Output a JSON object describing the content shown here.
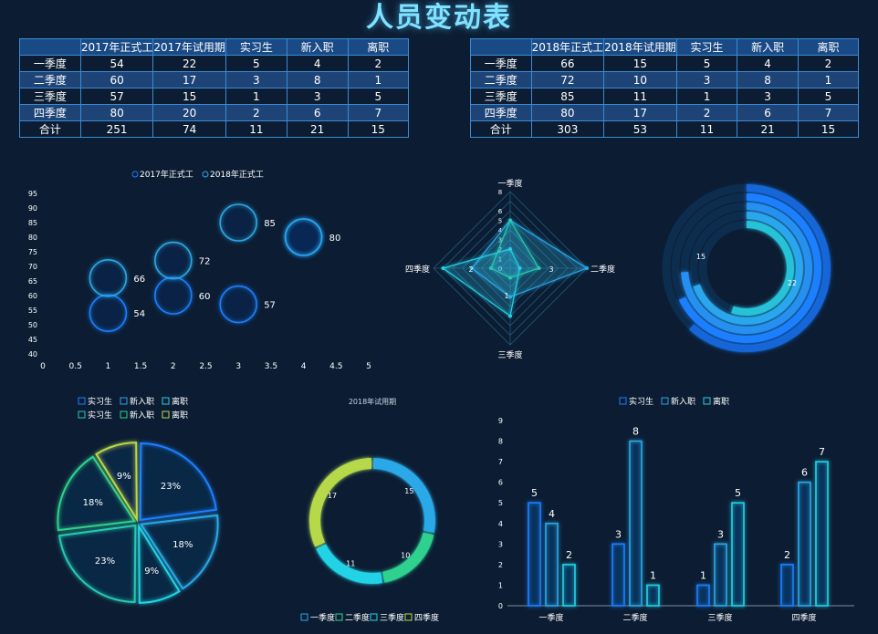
{
  "page_title": "人员变动表",
  "colors": {
    "accent": "#7fe3ff",
    "blue": "#1a7fff",
    "lightblue": "#2aa8e8",
    "cyan": "#22d3e6",
    "teal": "#26c9b3",
    "green": "#2fd18e",
    "lime": "#b7d94a",
    "table_border": "#3a8bd1",
    "table_header": "#1a4a86"
  },
  "table_2017": {
    "columns": [
      "",
      "2017年正式工",
      "2017年试用期",
      "实习生",
      "新入职",
      "离职"
    ],
    "rows": [
      [
        "一季度",
        "54",
        "22",
        "5",
        "4",
        "2"
      ],
      [
        "二季度",
        "60",
        "17",
        "3",
        "8",
        "1"
      ],
      [
        "三季度",
        "57",
        "15",
        "1",
        "3",
        "5"
      ],
      [
        "四季度",
        "80",
        "20",
        "2",
        "6",
        "7"
      ],
      [
        "合计",
        "251",
        "74",
        "11",
        "21",
        "15"
      ]
    ]
  },
  "table_2018": {
    "columns": [
      "",
      "2018年正式工",
      "2018年试用期",
      "实习生",
      "新入职",
      "离职"
    ],
    "rows": [
      [
        "一季度",
        "66",
        "15",
        "5",
        "4",
        "2"
      ],
      [
        "二季度",
        "72",
        "10",
        "3",
        "8",
        "1"
      ],
      [
        "三季度",
        "85",
        "11",
        "1",
        "3",
        "5"
      ],
      [
        "四季度",
        "80",
        "17",
        "2",
        "6",
        "7"
      ],
      [
        "合计",
        "303",
        "53",
        "11",
        "21",
        "15"
      ]
    ]
  },
  "chart_data": [
    {
      "id": "bubble",
      "type": "scatter",
      "legend_position": "top",
      "series": [
        {
          "name": "2017年正式工",
          "points": [
            [
              1,
              54
            ],
            [
              2,
              60
            ],
            [
              3,
              57
            ],
            [
              4,
              80
            ]
          ]
        },
        {
          "name": "2018年正式工",
          "points": [
            [
              1,
              66
            ],
            [
              2,
              72
            ],
            [
              3,
              85
            ],
            [
              4,
              80
            ]
          ]
        }
      ],
      "point_labels": [
        "54",
        "60",
        "57",
        "80",
        "66",
        "72",
        "85"
      ],
      "xlim": [
        0,
        5
      ],
      "x_ticks": [
        "0",
        "0.5",
        "1",
        "1.5",
        "2",
        "2.5",
        "3",
        "3.5",
        "4",
        "4.5",
        "5"
      ],
      "ylim": [
        40,
        95
      ],
      "y_ticks": [
        "40",
        "45",
        "50",
        "55",
        "60",
        "65",
        "70",
        "75",
        "80",
        "85",
        "90",
        "95"
      ]
    },
    {
      "id": "radar",
      "type": "radar",
      "axes": [
        "一季度",
        "二季度",
        "三季度",
        "四季度"
      ],
      "max": 8,
      "ring_ticks": [
        "0",
        "1",
        "2",
        "3",
        "4",
        "5",
        "6",
        "8"
      ],
      "series": [
        {
          "values": [
            5,
            8,
            3,
            4
          ]
        },
        {
          "values": [
            2,
            1,
            5,
            7
          ]
        },
        {
          "values": [
            5,
            3,
            1,
            2
          ]
        }
      ],
      "visible_value_labels": [
        "2",
        "3",
        "1"
      ]
    },
    {
      "id": "rings",
      "type": "pie",
      "rings": [
        {
          "value": 15,
          "total": 74
        },
        {
          "value": 22,
          "total": 74
        }
      ],
      "labels": [
        "15",
        "22"
      ]
    },
    {
      "id": "pie",
      "type": "pie",
      "legend_rows": [
        [
          "实习生",
          "新入职",
          "离职"
        ],
        [
          "实习生",
          "新入职",
          "离职"
        ]
      ],
      "slices": [
        {
          "label": "23%",
          "value": 23
        },
        {
          "label": "18%",
          "value": 18
        },
        {
          "label": "9%",
          "value": 9
        },
        {
          "label": "23%",
          "value": 23
        },
        {
          "label": "18%",
          "value": 18
        },
        {
          "label": "9%",
          "value": 9
        }
      ]
    },
    {
      "id": "donut",
      "type": "pie",
      "title": "2018年试用期",
      "categories": [
        "一季度",
        "二季度",
        "三季度",
        "四季度"
      ],
      "values": [
        15,
        10,
        11,
        17
      ],
      "legend_position": "bottom"
    },
    {
      "id": "bar",
      "type": "bar",
      "categories": [
        "一季度",
        "二季度",
        "三季度",
        "四季度"
      ],
      "series": [
        {
          "name": "实习生",
          "values": [
            5,
            3,
            1,
            2
          ]
        },
        {
          "name": "新入职",
          "values": [
            4,
            8,
            3,
            6
          ]
        },
        {
          "name": "离职",
          "values": [
            2,
            1,
            5,
            7
          ]
        }
      ],
      "ylim": [
        0,
        9
      ],
      "y_ticks": [
        "0",
        "1",
        "2",
        "3",
        "4",
        "5",
        "6",
        "7",
        "8",
        "9"
      ],
      "legend_position": "top"
    }
  ]
}
